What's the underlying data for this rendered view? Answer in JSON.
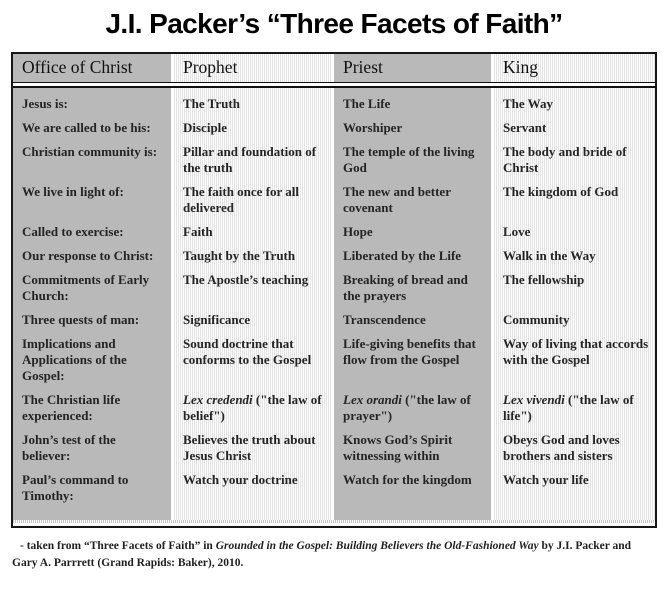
{
  "title": "J.I. Packer’s “Three Facets of Faith”",
  "table": {
    "headers": [
      "Office of Christ",
      "Prophet",
      "Priest",
      "King"
    ],
    "rows": [
      {
        "label": "Jesus is:",
        "cells": [
          "The Truth",
          "The Life",
          "The Way"
        ]
      },
      {
        "label": "We are called to be his:",
        "cells": [
          "Disciple",
          "Worshiper",
          "Servant"
        ]
      },
      {
        "label": "Christian community is:",
        "cells": [
          "Pillar and foundation of the truth",
          "The temple of the living God",
          "The body and bride of Christ"
        ]
      },
      {
        "label": "We live in light of:",
        "cells": [
          "The faith once for all delivered",
          "The new and better covenant",
          "The kingdom of God"
        ]
      },
      {
        "label": "Called to exercise:",
        "cells": [
          "Faith",
          "Hope",
          "Love"
        ]
      },
      {
        "label": "Our response to Christ:",
        "cells": [
          "Taught by the Truth",
          "Liberated by the Life",
          "Walk in the Way"
        ]
      },
      {
        "label": "Commitments of Early Church:",
        "cells": [
          "The Apostle’s teaching",
          "Breaking of bread and the prayers",
          "The fellowship"
        ]
      },
      {
        "label": "Three quests of man:",
        "cells": [
          "Significance",
          "Transcendence",
          "Community"
        ]
      },
      {
        "label": "Implications and Applications of the Gospel:",
        "cells": [
          "Sound doctrine that conforms to the Gospel",
          "Life-giving benefits that flow from the Gospel",
          "Way of living that accords with the Gospel"
        ]
      },
      {
        "label": "The Christian life experienced:",
        "cells": [
          [
            {
              "text": "Lex credendi",
              "italic": true
            },
            {
              "text": " (\"the law of belief\")"
            }
          ],
          [
            {
              "text": "Lex orandi",
              "italic": true
            },
            {
              "text": " (\"the law of prayer\")"
            }
          ],
          [
            {
              "text": "Lex vivendi",
              "italic": true
            },
            {
              "text": " (\"the law of life\")"
            }
          ]
        ]
      },
      {
        "label": "John’s test of the believer:",
        "cells": [
          "Believes the truth about Jesus Christ",
          "Knows God’s Spirit witnessing within",
          "Obeys God and loves brothers and sisters"
        ]
      },
      {
        "label": "Paul’s command to Timothy:",
        "cells": [
          "Watch your doctrine",
          "Watch for the kingdom",
          "Watch your life"
        ]
      }
    ]
  },
  "footer": {
    "prefix": "- taken from “Three Facets of Faith” in ",
    "book_title": "Grounded in the Gospel: Building Believers the Old-Fashioned Way",
    "suffix": " by J.I. Packer and Gary A. Parrrett (Grand Rapids: Baker), 2010."
  },
  "colors": {
    "column_gray": "#b9b9b9",
    "column_light_dot": "#e3e3e3",
    "border_black": "#161616",
    "text_dark": "#242424"
  }
}
